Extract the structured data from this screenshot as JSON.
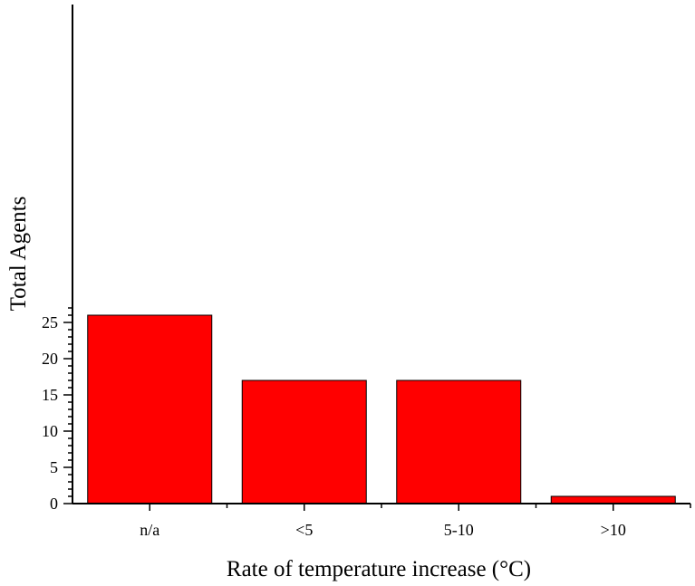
{
  "chart_data": {
    "type": "bar",
    "categories": [
      "n/a",
      "<5",
      "5-10",
      ">10"
    ],
    "values": [
      26,
      17,
      17,
      1
    ],
    "title": "",
    "xlabel": "Rate of temperature increase (°C)",
    "ylabel": "Total Agents",
    "ylim": [
      0,
      27.5
    ],
    "yticks": [
      0,
      5,
      10,
      15,
      20,
      25
    ],
    "y_minor_step": 1,
    "grid": false,
    "legend": "none",
    "bar_color": "#ff0000",
    "edge_color": "#000000"
  }
}
